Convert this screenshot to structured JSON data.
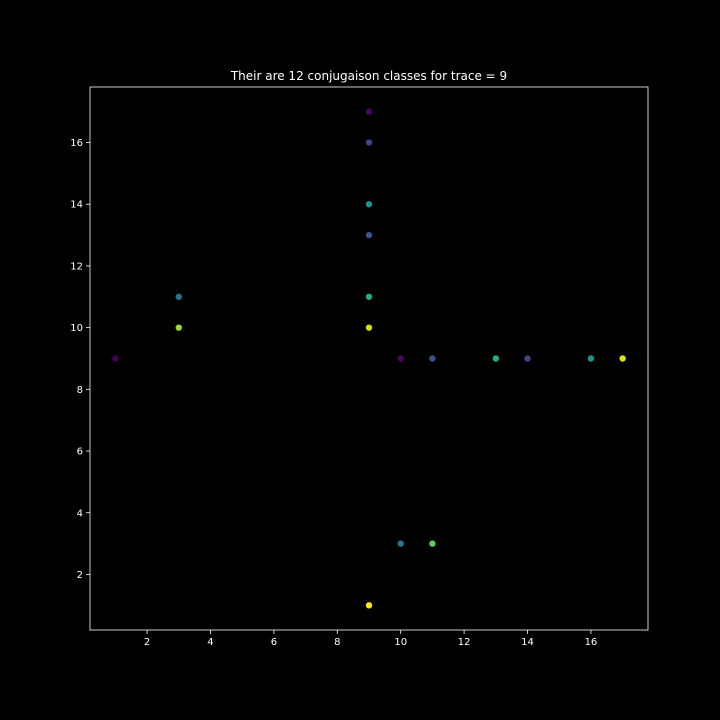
{
  "chart_data": {
    "type": "scatter",
    "title": "Their are 12 conjugaison classes for trace = 9",
    "xlabel": "",
    "ylabel": "",
    "xlim": [
      0.2,
      17.8
    ],
    "ylim": [
      0.2,
      17.8
    ],
    "x_ticks": [
      2,
      4,
      6,
      8,
      10,
      12,
      14,
      16
    ],
    "y_ticks": [
      2,
      4,
      6,
      8,
      10,
      12,
      14,
      16
    ],
    "grid": false,
    "background": "#000000",
    "foreground": "#ffffff",
    "points": [
      {
        "x": 1,
        "y": 9,
        "color": "#440154"
      },
      {
        "x": 9,
        "y": 17,
        "color": "#46085c"
      },
      {
        "x": 10,
        "y": 9,
        "color": "#46085c"
      },
      {
        "x": 9,
        "y": 16,
        "color": "#414487"
      },
      {
        "x": 14,
        "y": 9,
        "color": "#414487"
      },
      {
        "x": 9,
        "y": 13,
        "color": "#3b528b"
      },
      {
        "x": 11,
        "y": 9,
        "color": "#3b528b"
      },
      {
        "x": 3,
        "y": 11,
        "color": "#2c728e"
      },
      {
        "x": 10,
        "y": 3,
        "color": "#2c728e"
      },
      {
        "x": 9,
        "y": 14,
        "color": "#21918c"
      },
      {
        "x": 16,
        "y": 9,
        "color": "#21918c"
      },
      {
        "x": 9,
        "y": 11,
        "color": "#27ad81"
      },
      {
        "x": 13,
        "y": 9,
        "color": "#27ad81"
      },
      {
        "x": 11,
        "y": 3,
        "color": "#5ec962"
      },
      {
        "x": 3,
        "y": 10,
        "color": "#a0da39"
      },
      {
        "x": 9,
        "y": 10,
        "color": "#d0e11c"
      },
      {
        "x": 17,
        "y": 9,
        "color": "#dde318"
      },
      {
        "x": 9,
        "y": 1,
        "color": "#fde725"
      }
    ]
  }
}
